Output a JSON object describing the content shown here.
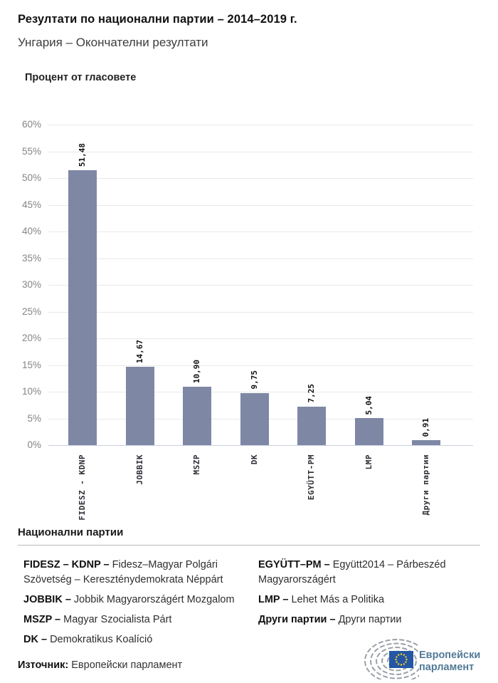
{
  "header": {
    "title": "Резултати по национални партии – 2014–2019 г.",
    "subtitle": "Унгария – Окончателни резултати"
  },
  "chart_data": {
    "type": "bar",
    "title": "Процент от гласовете",
    "categories": [
      "FIDESZ - KDNP",
      "JOBBIK",
      "MSZP",
      "DK",
      "EGYÜTT-PM",
      "LMP",
      "Други партии"
    ],
    "values": [
      51.48,
      14.67,
      10.9,
      9.75,
      7.25,
      5.04,
      0.91
    ],
    "value_labels": [
      "51,48",
      "14,67",
      "10,90",
      "9,75",
      "7,25",
      "5,04",
      "0,91"
    ],
    "xlabel": "",
    "ylabel": "",
    "ylim": [
      0,
      60
    ],
    "ytick_step": 5,
    "ytick_suffix": "%",
    "grid": true,
    "legend_position": "none",
    "bar_color": "#7e88a5"
  },
  "legend": {
    "heading": "Национални партии",
    "columns": [
      [
        {
          "term": "FIDESZ – KDNP –",
          "desc": "Fidesz–Magyar Polgári Szövetség – Kereszténydemokrata Néppárt"
        },
        {
          "term": "JOBBIK –",
          "desc": "Jobbik Magyarországért Mozgalom"
        },
        {
          "term": "MSZP –",
          "desc": "Magyar Szocialista Párt"
        },
        {
          "term": "DK –",
          "desc": "Demokratikus Koalíció"
        }
      ],
      [
        {
          "term": "EGYÜTT–PM –",
          "desc": "Együtt2014 – Párbeszéd Magyarországért"
        },
        {
          "term": "LMP –",
          "desc": "Lehet Más a Politika"
        },
        {
          "term": "Други партии –",
          "desc": "Други партии"
        }
      ]
    ]
  },
  "footer": {
    "source_label": "Източник:",
    "source_text": "Европейски парламент",
    "logo_line1": "Европейски",
    "logo_line2": "парламент"
  },
  "colors": {
    "bar": "#7e88a5",
    "gridline": "#e9e9e9",
    "baseline": "#c9cfe2",
    "logo_text": "#527a97",
    "flag_blue": "#2456a4",
    "star_yellow": "#ffd617",
    "arc_gray": "#9aa1a8"
  }
}
